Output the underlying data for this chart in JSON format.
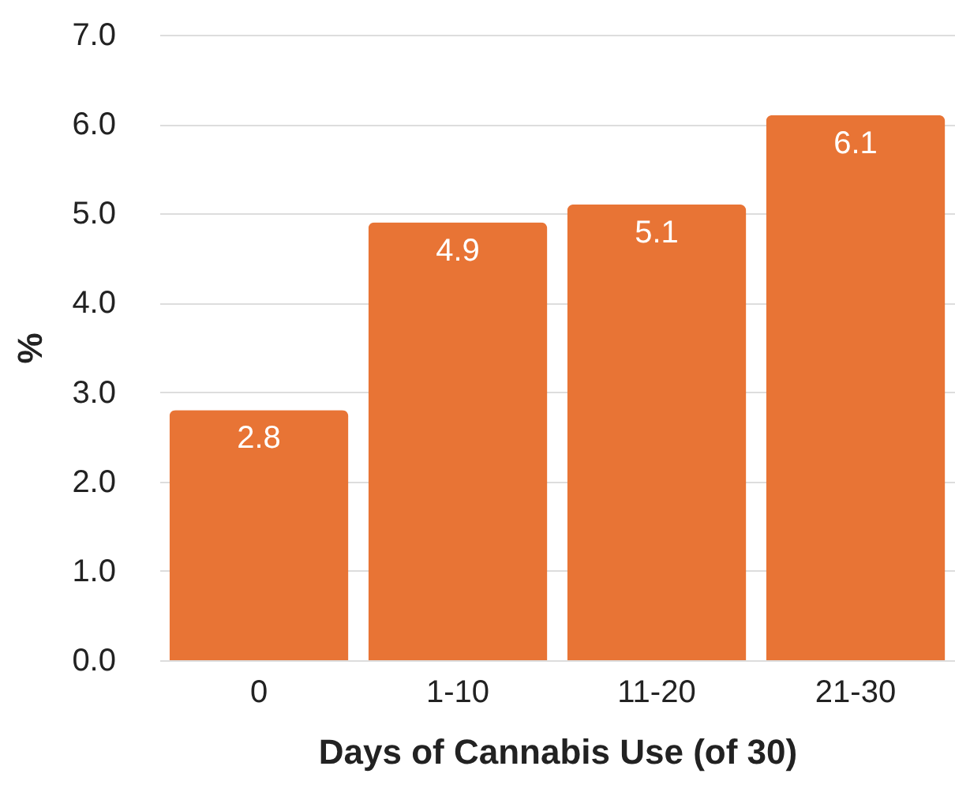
{
  "chart_data": {
    "type": "bar",
    "xlabel": "Days of Cannabis Use (of 30)",
    "ylabel": "%",
    "categories": [
      "0",
      "1-10",
      "11-20",
      "21-30"
    ],
    "values": [
      2.8,
      4.9,
      5.1,
      6.1
    ],
    "color": "#e87435",
    "ylim": [
      0,
      7
    ],
    "yticks": [
      {
        "value": 0,
        "label": "0.0"
      },
      {
        "value": 1,
        "label": "1.0"
      },
      {
        "value": 2,
        "label": "2.0"
      },
      {
        "value": 3,
        "label": "3.0"
      },
      {
        "value": 4,
        "label": "4.0"
      },
      {
        "value": 5,
        "label": "5.0"
      },
      {
        "value": 6,
        "label": "6.0"
      },
      {
        "value": 7,
        "label": "7.0"
      }
    ],
    "grid": "y",
    "data_labels": true
  }
}
